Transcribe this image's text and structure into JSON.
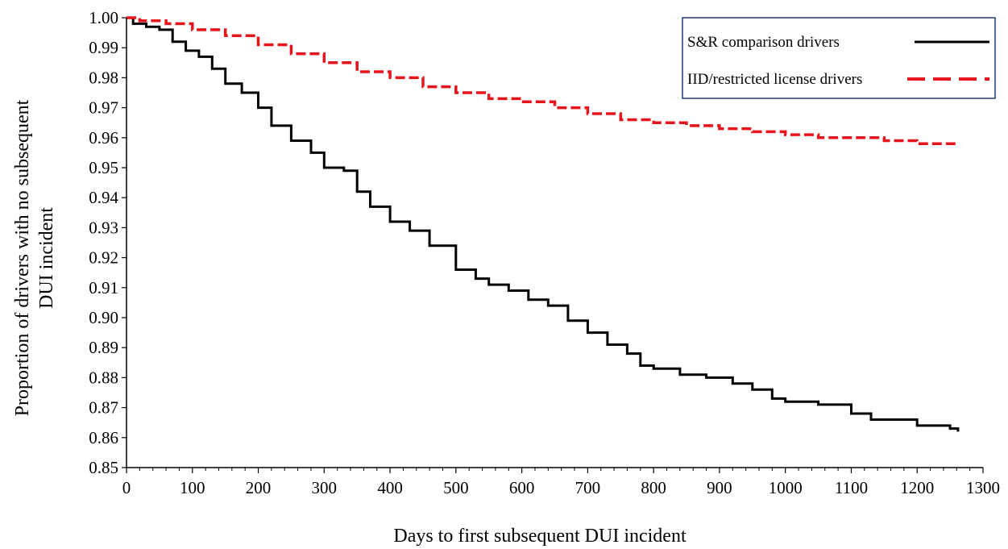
{
  "chart_data": {
    "type": "line",
    "title": "",
    "xlabel": "Days to first subsequent DUI incident",
    "ylabel_lines": [
      "Proportion of drivers with no subsequent",
      "DUI incident"
    ],
    "xlim": [
      0,
      1300
    ],
    "ylim": [
      0.85,
      1.0
    ],
    "x_ticks": [
      "0",
      "100",
      "200",
      "300",
      "400",
      "500",
      "600",
      "700",
      "800",
      "900",
      "1000",
      "1100",
      "1200",
      "1300"
    ],
    "y_ticks": [
      "0.85",
      "0.86",
      "0.87",
      "0.88",
      "0.89",
      "0.90",
      "0.91",
      "0.92",
      "0.93",
      "0.94",
      "0.95",
      "0.96",
      "0.97",
      "0.98",
      "0.99",
      "1.00"
    ],
    "grid": false,
    "legend_position": "top-right",
    "series": [
      {
        "name": "S&R comparison drivers",
        "color": "#000000",
        "style": "solid",
        "x": [
          0,
          10,
          30,
          50,
          70,
          90,
          110,
          130,
          150,
          175,
          200,
          220,
          250,
          280,
          300,
          330,
          350,
          370,
          400,
          430,
          460,
          500,
          530,
          550,
          580,
          610,
          640,
          670,
          700,
          730,
          760,
          780,
          800,
          840,
          880,
          920,
          950,
          980,
          1000,
          1050,
          1100,
          1130,
          1170,
          1200,
          1250,
          1262
        ],
        "y": [
          1.0,
          0.998,
          0.997,
          0.996,
          0.992,
          0.989,
          0.987,
          0.983,
          0.978,
          0.975,
          0.97,
          0.964,
          0.959,
          0.955,
          0.95,
          0.949,
          0.942,
          0.937,
          0.932,
          0.929,
          0.924,
          0.916,
          0.913,
          0.911,
          0.909,
          0.906,
          0.904,
          0.899,
          0.895,
          0.891,
          0.888,
          0.884,
          0.883,
          0.881,
          0.88,
          0.878,
          0.876,
          0.873,
          0.872,
          0.871,
          0.868,
          0.866,
          0.866,
          0.864,
          0.863,
          0.862
        ]
      },
      {
        "name": "IID/restricted license drivers",
        "color": "#e8141c",
        "style": "dashed",
        "x": [
          0,
          20,
          60,
          100,
          150,
          200,
          250,
          300,
          350,
          400,
          450,
          500,
          550,
          600,
          650,
          700,
          750,
          800,
          850,
          900,
          950,
          1000,
          1050,
          1100,
          1150,
          1200,
          1262
        ],
        "y": [
          1.0,
          0.999,
          0.998,
          0.996,
          0.994,
          0.991,
          0.988,
          0.985,
          0.982,
          0.98,
          0.977,
          0.975,
          0.973,
          0.972,
          0.97,
          0.968,
          0.966,
          0.965,
          0.964,
          0.963,
          0.962,
          0.961,
          0.96,
          0.96,
          0.959,
          0.958,
          0.958
        ]
      }
    ]
  }
}
